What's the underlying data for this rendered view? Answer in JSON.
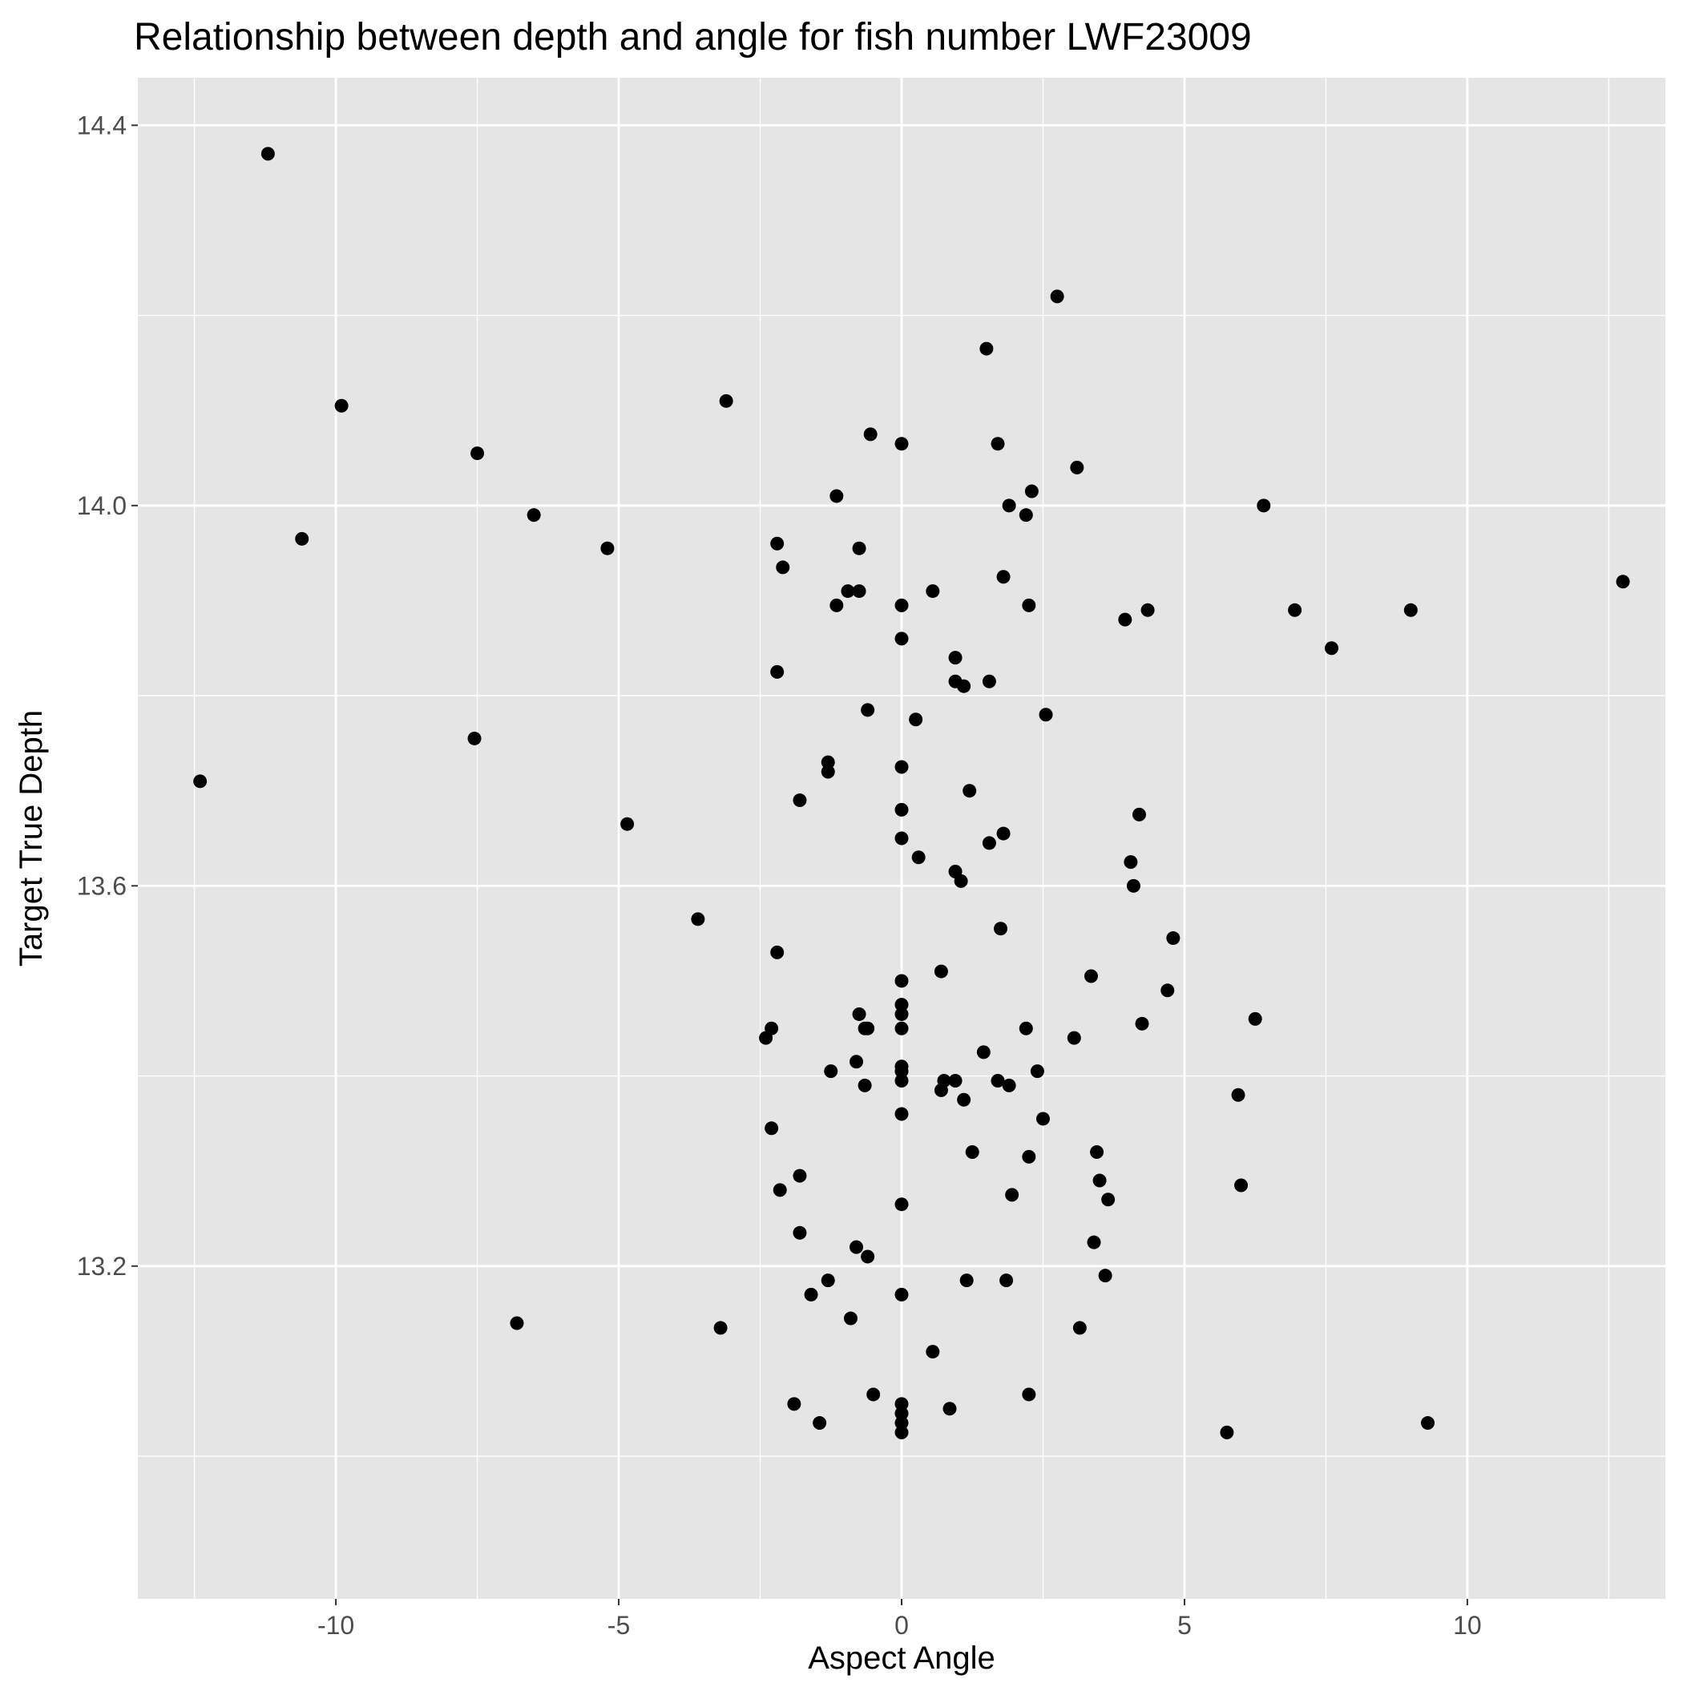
{
  "chart_data": {
    "type": "scatter",
    "title": "Relationship between depth and angle for fish number LWF23009",
    "xlabel": "Aspect Angle",
    "ylabel": "Target True Depth",
    "xlim": [
      -13.5,
      13.5
    ],
    "ylim": [
      12.85,
      14.45
    ],
    "x_ticks": [
      -10,
      -5,
      0,
      5,
      10
    ],
    "x_tick_labels": [
      "-10",
      "-5",
      "0",
      "5",
      "10"
    ],
    "x_minor_ticks": [
      -12.5,
      -7.5,
      -2.5,
      2.5,
      7.5,
      12.5
    ],
    "y_ticks": [
      13.2,
      13.6,
      14.0,
      14.4
    ],
    "y_tick_labels": [
      "13.2",
      "13.6",
      "14.0",
      "14.4"
    ],
    "y_minor_ticks": [
      13.0,
      13.4,
      13.8,
      14.2
    ],
    "grid": true,
    "legend": "none",
    "colors": {
      "panel": "#e5e5e5",
      "grid": "#ffffff",
      "point": "#000000",
      "axis_text": "#4d4d4d"
    },
    "series": [
      {
        "points": [
          [
            -11.2,
            14.37
          ],
          [
            -9.9,
            14.105
          ],
          [
            -7.5,
            14.055
          ],
          [
            -10.6,
            13.965
          ],
          [
            -6.5,
            13.99
          ],
          [
            -5.2,
            13.955
          ],
          [
            -3.1,
            14.11
          ],
          [
            -12.4,
            13.71
          ],
          [
            -7.55,
            13.755
          ],
          [
            -4.85,
            13.665
          ],
          [
            -3.6,
            13.565
          ],
          [
            -6.8,
            13.14
          ],
          [
            -3.2,
            13.135
          ],
          [
            -2.2,
            13.96
          ],
          [
            -2.1,
            13.935
          ],
          [
            -2.2,
            13.825
          ],
          [
            -2.2,
            13.53
          ],
          [
            -2.3,
            13.45
          ],
          [
            -2.4,
            13.44
          ],
          [
            -2.3,
            13.345
          ],
          [
            -2.15,
            13.28
          ],
          [
            -1.9,
            13.055
          ],
          [
            -1.15,
            14.01
          ],
          [
            -1.15,
            13.895
          ],
          [
            -0.95,
            13.91
          ],
          [
            -0.75,
            13.91
          ],
          [
            -0.75,
            13.955
          ],
          [
            -0.55,
            14.075
          ],
          [
            -0.6,
            13.785
          ],
          [
            -1.3,
            13.73
          ],
          [
            -1.3,
            13.72
          ],
          [
            -1.8,
            13.69
          ],
          [
            -0.75,
            13.465
          ],
          [
            -0.65,
            13.45
          ],
          [
            -0.6,
            13.45
          ],
          [
            -0.8,
            13.415
          ],
          [
            -1.25,
            13.405
          ],
          [
            -0.65,
            13.39
          ],
          [
            -1.8,
            13.295
          ],
          [
            -1.8,
            13.235
          ],
          [
            -0.8,
            13.22
          ],
          [
            -0.6,
            13.21
          ],
          [
            -1.3,
            13.185
          ],
          [
            -1.6,
            13.17
          ],
          [
            -0.9,
            13.145
          ],
          [
            -0.5,
            13.065
          ],
          [
            -1.45,
            13.035
          ],
          [
            0.0,
            14.065
          ],
          [
            0.0,
            13.895
          ],
          [
            0.0,
            13.86
          ],
          [
            0.0,
            13.725
          ],
          [
            0.0,
            13.68
          ],
          [
            0.0,
            13.65
          ],
          [
            0.0,
            13.5
          ],
          [
            0.0,
            13.475
          ],
          [
            0.0,
            13.465
          ],
          [
            0.0,
            13.45
          ],
          [
            0.0,
            13.41
          ],
          [
            0.0,
            13.405
          ],
          [
            0.0,
            13.395
          ],
          [
            0.0,
            13.36
          ],
          [
            0.0,
            13.265
          ],
          [
            0.0,
            13.17
          ],
          [
            0.0,
            13.055
          ],
          [
            0.0,
            13.045
          ],
          [
            0.0,
            13.035
          ],
          [
            0.0,
            13.025
          ],
          [
            0.55,
            13.91
          ],
          [
            0.95,
            13.84
          ],
          [
            0.95,
            13.815
          ],
          [
            1.1,
            13.81
          ],
          [
            0.25,
            13.775
          ],
          [
            1.2,
            13.7
          ],
          [
            0.3,
            13.63
          ],
          [
            0.95,
            13.615
          ],
          [
            1.05,
            13.605
          ],
          [
            0.7,
            13.51
          ],
          [
            0.75,
            13.395
          ],
          [
            0.95,
            13.395
          ],
          [
            0.7,
            13.385
          ],
          [
            1.1,
            13.375
          ],
          [
            1.25,
            13.32
          ],
          [
            1.15,
            13.185
          ],
          [
            0.55,
            13.11
          ],
          [
            0.85,
            13.05
          ],
          [
            1.5,
            14.165
          ],
          [
            1.7,
            14.065
          ],
          [
            1.9,
            14.0
          ],
          [
            1.8,
            13.925
          ],
          [
            1.55,
            13.815
          ],
          [
            1.55,
            13.645
          ],
          [
            1.8,
            13.655
          ],
          [
            1.75,
            13.555
          ],
          [
            1.45,
            13.425
          ],
          [
            1.7,
            13.395
          ],
          [
            1.9,
            13.39
          ],
          [
            1.95,
            13.275
          ],
          [
            1.85,
            13.185
          ],
          [
            2.75,
            14.22
          ],
          [
            2.3,
            14.015
          ],
          [
            2.2,
            13.99
          ],
          [
            2.25,
            13.895
          ],
          [
            2.55,
            13.78
          ],
          [
            3.1,
            14.04
          ],
          [
            2.2,
            13.45
          ],
          [
            2.4,
            13.405
          ],
          [
            2.5,
            13.355
          ],
          [
            2.25,
            13.315
          ],
          [
            3.05,
            13.44
          ],
          [
            2.25,
            13.065
          ],
          [
            3.35,
            13.505
          ],
          [
            3.4,
            13.225
          ],
          [
            3.15,
            13.135
          ],
          [
            3.45,
            13.32
          ],
          [
            3.5,
            13.29
          ],
          [
            3.6,
            13.19
          ],
          [
            3.65,
            13.27
          ],
          [
            3.95,
            13.88
          ],
          [
            4.35,
            13.89
          ],
          [
            4.2,
            13.675
          ],
          [
            4.05,
            13.625
          ],
          [
            4.1,
            13.6
          ],
          [
            4.8,
            13.545
          ],
          [
            4.7,
            13.49
          ],
          [
            4.25,
            13.455
          ],
          [
            6.4,
            14.0
          ],
          [
            6.95,
            13.89
          ],
          [
            7.6,
            13.85
          ],
          [
            9.0,
            13.89
          ],
          [
            12.75,
            13.92
          ],
          [
            6.25,
            13.46
          ],
          [
            5.95,
            13.38
          ],
          [
            6.0,
            13.285
          ],
          [
            5.75,
            13.025
          ],
          [
            9.3,
            13.035
          ]
        ]
      }
    ]
  }
}
